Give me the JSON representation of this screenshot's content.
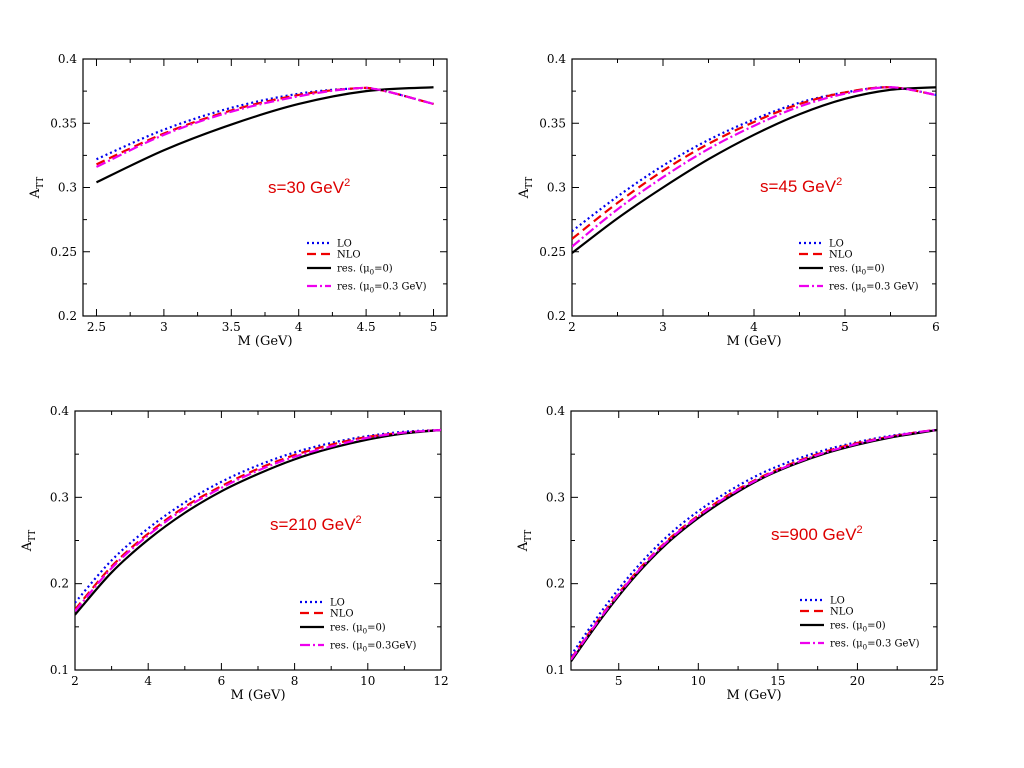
{
  "chart_data": [
    {
      "type": "line",
      "annotation": "s=30 GeV",
      "annotation_sup": "2",
      "xlabel": "M (GeV)",
      "ylabel_main": "A",
      "ylabel_sub": "TT",
      "xlim": [
        2.4,
        5.1
      ],
      "ylim": [
        0.2,
        0.4
      ],
      "xticks": [
        2.5,
        3,
        3.5,
        4,
        4.5,
        5
      ],
      "xtick_labels": [
        "2.5",
        "3",
        "3.5",
        "4",
        "4.5",
        "5"
      ],
      "yticks": [
        0.2,
        0.25,
        0.3,
        0.35,
        0.4
      ],
      "ytick_labels": [
        "0.2",
        "0.25",
        "0.3",
        "0.35",
        "0.4"
      ],
      "legend_position": "bottom-right",
      "series": [
        {
          "name": "LO",
          "legend_pre": "LO",
          "legend_sub": "",
          "legend_post": "",
          "color": "#0000ee",
          "dash": "2,3",
          "width": 2.2,
          "x": [
            2.5,
            3.0,
            3.5,
            4.0,
            4.4,
            4.6,
            5.0
          ],
          "y": [
            0.322,
            0.345,
            0.362,
            0.373,
            0.377,
            0.376,
            0.365
          ]
        },
        {
          "name": "NLO",
          "legend_pre": "NLO",
          "legend_sub": "",
          "legend_post": "",
          "color": "#ee0000",
          "dash": "9,5",
          "width": 2.2,
          "x": [
            2.5,
            3.0,
            3.5,
            4.0,
            4.4,
            4.6,
            5.0
          ],
          "y": [
            0.318,
            0.342,
            0.36,
            0.372,
            0.377,
            0.376,
            0.365
          ]
        },
        {
          "name": "res. (μ0=0)",
          "legend_pre": "res. (μ",
          "legend_sub": "0",
          "legend_post": "=0)",
          "color": "#000000",
          "dash": "",
          "width": 2.2,
          "x": [
            2.5,
            3.0,
            3.5,
            4.0,
            4.5,
            5.0
          ],
          "y": [
            0.304,
            0.329,
            0.349,
            0.365,
            0.375,
            0.378
          ]
        },
        {
          "name": "res. (μ0=0.3 GeV)",
          "legend_pre": "res. (μ",
          "legend_sub": "0",
          "legend_post": "=0.3 GeV)",
          "color": "#ee00ee",
          "dash": "10,3,2,3",
          "width": 2.2,
          "x": [
            2.5,
            3.0,
            3.5,
            4.0,
            4.4,
            4.6,
            5.0
          ],
          "y": [
            0.316,
            0.341,
            0.359,
            0.371,
            0.377,
            0.376,
            0.365
          ]
        }
      ]
    },
    {
      "type": "line",
      "annotation": "s=45 GeV",
      "annotation_sup": "2",
      "xlabel": "M (GeV)",
      "ylabel_main": "A",
      "ylabel_sub": "TT",
      "xlim": [
        2,
        6
      ],
      "ylim": [
        0.2,
        0.4
      ],
      "xticks": [
        2,
        3,
        4,
        5,
        6
      ],
      "xtick_labels": [
        "2",
        "3",
        "4",
        "5",
        "6"
      ],
      "yticks": [
        0.2,
        0.25,
        0.3,
        0.35,
        0.4
      ],
      "ytick_labels": [
        "0.2",
        "0.25",
        "0.3",
        "0.35",
        "0.4"
      ],
      "legend_position": "bottom-right",
      "series": [
        {
          "name": "LO",
          "legend_pre": "LO",
          "legend_sub": "",
          "legend_post": "",
          "color": "#0000ee",
          "dash": "2,3",
          "width": 2.2,
          "x": [
            2,
            2.5,
            3,
            3.5,
            4,
            4.5,
            5,
            5.5,
            6
          ],
          "y": [
            0.266,
            0.293,
            0.317,
            0.337,
            0.353,
            0.366,
            0.374,
            0.378,
            0.372
          ]
        },
        {
          "name": "NLO",
          "legend_pre": "NLO",
          "legend_sub": "",
          "legend_post": "",
          "color": "#ee0000",
          "dash": "9,5",
          "width": 2.2,
          "x": [
            2,
            2.5,
            3,
            3.5,
            4,
            4.5,
            5,
            5.5,
            6
          ],
          "y": [
            0.26,
            0.288,
            0.313,
            0.334,
            0.351,
            0.365,
            0.374,
            0.378,
            0.372
          ]
        },
        {
          "name": "res. (μ0=0)",
          "legend_pre": "res. (μ",
          "legend_sub": "0",
          "legend_post": "=0)",
          "color": "#000000",
          "dash": "",
          "width": 2.2,
          "x": [
            2,
            2.5,
            3,
            3.5,
            4,
            4.5,
            5,
            5.5,
            6
          ],
          "y": [
            0.249,
            0.276,
            0.3,
            0.322,
            0.341,
            0.357,
            0.369,
            0.376,
            0.378
          ]
        },
        {
          "name": "res. (μ0=0.3 GeV)",
          "legend_pre": "res. (μ",
          "legend_sub": "0",
          "legend_post": "=0.3 GeV)",
          "color": "#ee00ee",
          "dash": "10,3,2,3",
          "width": 2.2,
          "x": [
            2,
            2.5,
            3,
            3.5,
            4,
            4.5,
            5,
            5.5,
            6
          ],
          "y": [
            0.254,
            0.283,
            0.308,
            0.33,
            0.348,
            0.363,
            0.373,
            0.378,
            0.372
          ]
        }
      ]
    },
    {
      "type": "line",
      "annotation": "s=210 GeV",
      "annotation_sup": "2",
      "xlabel": "M (GeV)",
      "ylabel_main": "A",
      "ylabel_sub": "TT",
      "xlim": [
        2,
        12
      ],
      "ylim": [
        0.1,
        0.4
      ],
      "xticks": [
        2,
        4,
        6,
        8,
        10,
        12
      ],
      "xtick_labels": [
        "2",
        "4",
        "6",
        "8",
        "10",
        "12"
      ],
      "yticks": [
        0.1,
        0.2,
        0.3,
        0.4
      ],
      "ytick_labels": [
        "0.1",
        "0.2",
        "0.3",
        "0.4"
      ],
      "legend_position": "bottom-right",
      "series": [
        {
          "name": "LO",
          "legend_pre": "LO",
          "legend_sub": "",
          "legend_post": "",
          "color": "#0000ee",
          "dash": "2,3",
          "width": 2.2,
          "x": [
            2,
            3,
            4,
            5,
            6,
            7,
            8,
            9,
            10,
            11,
            12
          ],
          "y": [
            0.178,
            0.227,
            0.264,
            0.294,
            0.318,
            0.337,
            0.352,
            0.363,
            0.371,
            0.376,
            0.378
          ]
        },
        {
          "name": "NLO",
          "legend_pre": "NLO",
          "legend_sub": "",
          "legend_post": "",
          "color": "#ee0000",
          "dash": "9,5",
          "width": 2.2,
          "x": [
            2,
            3,
            4,
            5,
            6,
            7,
            8,
            9,
            10,
            11,
            12
          ],
          "y": [
            0.17,
            0.22,
            0.258,
            0.289,
            0.313,
            0.333,
            0.349,
            0.361,
            0.37,
            0.375,
            0.378
          ]
        },
        {
          "name": "res. (μ0=0)",
          "legend_pre": "res. (μ",
          "legend_sub": "0",
          "legend_post": "=0)",
          "color": "#000000",
          "dash": "",
          "width": 2.2,
          "x": [
            2,
            3,
            4,
            5,
            6,
            7,
            8,
            9,
            10,
            11,
            12
          ],
          "y": [
            0.164,
            0.213,
            0.251,
            0.282,
            0.307,
            0.327,
            0.344,
            0.357,
            0.367,
            0.374,
            0.378
          ]
        },
        {
          "name": "res. (μ0=0.3GeV)",
          "legend_pre": "res. (μ",
          "legend_sub": "0",
          "legend_post": "=0.3GeV)",
          "color": "#ee00ee",
          "dash": "10,3,2,3",
          "width": 2.2,
          "x": [
            2,
            3,
            4,
            5,
            6,
            7,
            8,
            9,
            10,
            11,
            12
          ],
          "y": [
            0.168,
            0.218,
            0.256,
            0.287,
            0.311,
            0.331,
            0.347,
            0.359,
            0.369,
            0.375,
            0.378
          ]
        }
      ]
    },
    {
      "type": "line",
      "annotation": "s=900 GeV",
      "annotation_sup": "2",
      "xlabel": "M (GeV)",
      "ylabel_main": "A",
      "ylabel_sub": "TT",
      "xlim": [
        2,
        25
      ],
      "ylim": [
        0.1,
        0.4
      ],
      "xticks": [
        5,
        10,
        15,
        20,
        25
      ],
      "xtick_labels": [
        "5",
        "10",
        "15",
        "20",
        "25"
      ],
      "yticks": [
        0.1,
        0.2,
        0.3,
        0.4
      ],
      "ytick_labels": [
        "0.1",
        "0.2",
        "0.3",
        "0.4"
      ],
      "legend_position": "bottom-right",
      "series": [
        {
          "name": "LO",
          "legend_pre": "LO",
          "legend_sub": "",
          "legend_post": "",
          "color": "#0000ee",
          "dash": "2,3",
          "width": 2.2,
          "x": [
            2,
            4,
            6,
            8,
            10,
            12,
            14,
            16,
            18,
            20,
            22,
            24,
            25
          ],
          "y": [
            0.117,
            0.17,
            0.216,
            0.254,
            0.284,
            0.308,
            0.328,
            0.343,
            0.355,
            0.364,
            0.371,
            0.376,
            0.378
          ]
        },
        {
          "name": "NLO",
          "legend_pre": "NLO",
          "legend_sub": "",
          "legend_post": "",
          "color": "#ee0000",
          "dash": "9,5",
          "width": 2.2,
          "x": [
            2,
            4,
            6,
            8,
            10,
            12,
            14,
            16,
            18,
            20,
            22,
            24,
            25
          ],
          "y": [
            0.113,
            0.165,
            0.211,
            0.249,
            0.279,
            0.304,
            0.324,
            0.34,
            0.353,
            0.363,
            0.37,
            0.376,
            0.378
          ]
        },
        {
          "name": "res. (μ0=0)",
          "legend_pre": "res. (μ",
          "legend_sub": "0",
          "legend_post": "=0)",
          "color": "#000000",
          "dash": "",
          "width": 2.2,
          "x": [
            2,
            4,
            6,
            8,
            10,
            12,
            14,
            16,
            18,
            20,
            22,
            24,
            25
          ],
          "y": [
            0.11,
            0.162,
            0.208,
            0.246,
            0.276,
            0.301,
            0.322,
            0.338,
            0.351,
            0.361,
            0.369,
            0.375,
            0.378
          ]
        },
        {
          "name": "res. (μ0=0.3 GeV)",
          "legend_pre": "res. (μ",
          "legend_sub": "0",
          "legend_post": "=0.3 GeV)",
          "color": "#ee00ee",
          "dash": "10,3,2,3",
          "width": 2.2,
          "x": [
            2,
            4,
            6,
            8,
            10,
            12,
            14,
            16,
            18,
            20,
            22,
            24,
            25
          ],
          "y": [
            0.112,
            0.164,
            0.21,
            0.248,
            0.278,
            0.303,
            0.323,
            0.339,
            0.352,
            0.362,
            0.37,
            0.376,
            0.378
          ]
        }
      ]
    }
  ]
}
